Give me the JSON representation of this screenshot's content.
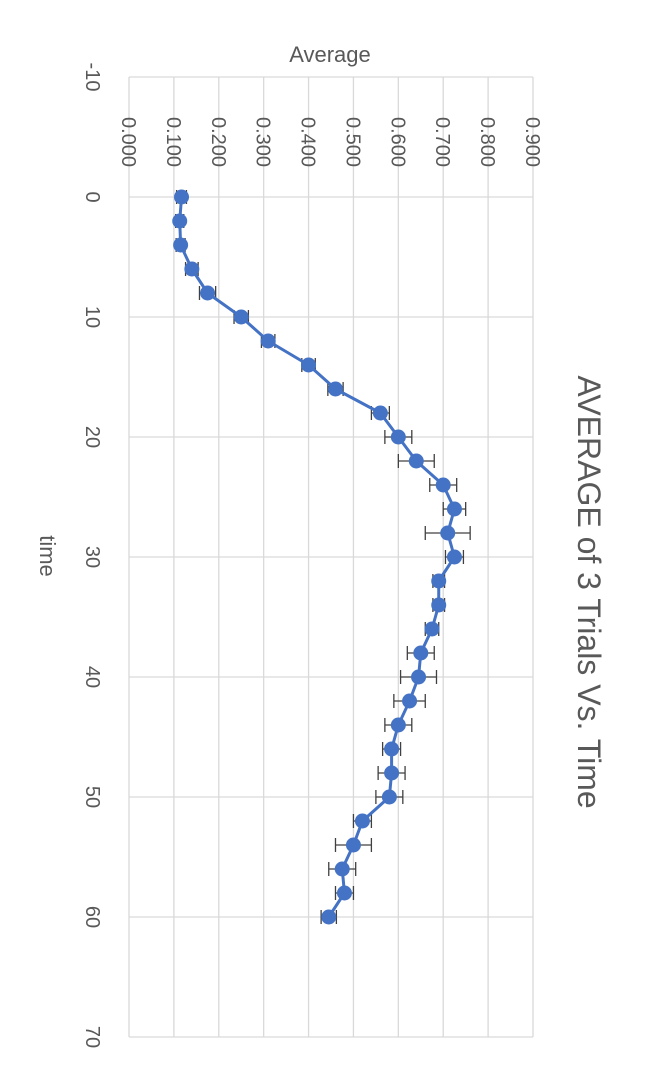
{
  "chart_data": {
    "type": "scatter",
    "orientation": "rotated-90-clockwise",
    "title": "AVERAGE of 3 Trials Vs. Time",
    "xlabel": "time",
    "ylabel": "Average",
    "xlim": [
      -10,
      70
    ],
    "ylim": [
      0,
      0.9
    ],
    "xticks": [
      "-10",
      "0",
      "10",
      "20",
      "30",
      "40",
      "50",
      "60",
      "70"
    ],
    "yticks": [
      "0.000",
      "0.100",
      "0.200",
      "0.300",
      "0.400",
      "0.500",
      "0.600",
      "0.700",
      "0.800",
      "0.900"
    ],
    "grid": true,
    "legend": "none",
    "series": [
      {
        "x": [
          0,
          2,
          4,
          6,
          8,
          10,
          12,
          14,
          16,
          18,
          20,
          22,
          24,
          26,
          28,
          30,
          32,
          34,
          36,
          38,
          40,
          42,
          44,
          46,
          48,
          50,
          52,
          54,
          56,
          58,
          60
        ],
        "values": [
          0.117,
          0.113,
          0.115,
          0.14,
          0.175,
          0.25,
          0.31,
          0.4,
          0.46,
          0.56,
          0.6,
          0.64,
          0.7,
          0.725,
          0.71,
          0.725,
          0.69,
          0.69,
          0.675,
          0.65,
          0.645,
          0.625,
          0.6,
          0.585,
          0.585,
          0.58,
          0.52,
          0.5,
          0.475,
          0.48,
          0.445
        ],
        "yerr": [
          0.011,
          0.009,
          0.01,
          0.014,
          0.018,
          0.016,
          0.015,
          0.015,
          0.017,
          0.02,
          0.03,
          0.04,
          0.03,
          0.025,
          0.05,
          0.02,
          0.013,
          0.013,
          0.015,
          0.03,
          0.04,
          0.035,
          0.03,
          0.02,
          0.03,
          0.03,
          0.02,
          0.04,
          0.03,
          0.02,
          0.017
        ],
        "color": "#4472C4"
      }
    ],
    "errorbar_color": "#404040",
    "grid_color": "#D9D9D9",
    "text_color": "#595959"
  }
}
